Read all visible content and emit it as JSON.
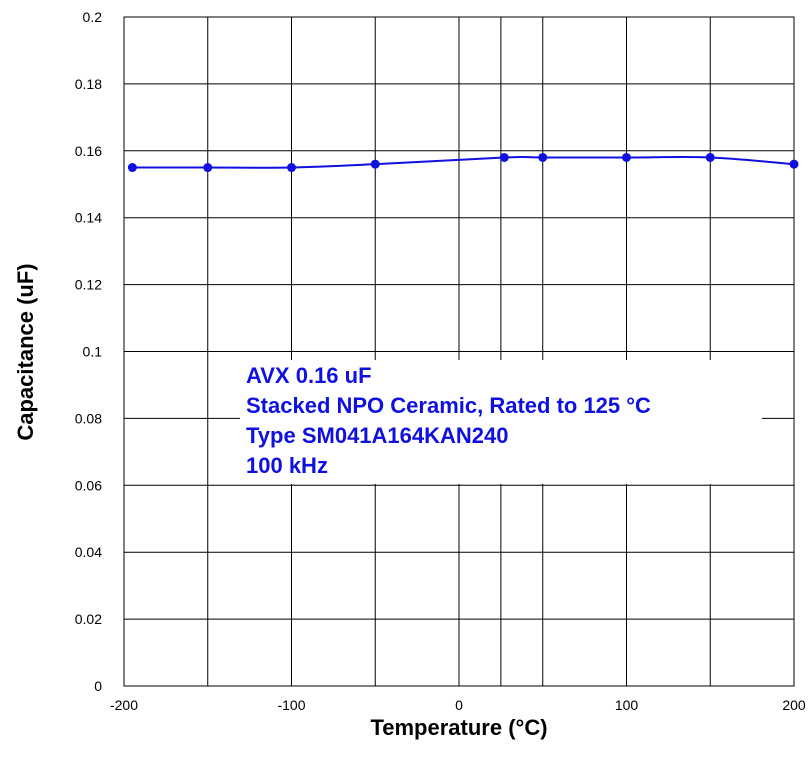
{
  "chart_data": {
    "type": "line",
    "title": "",
    "xlabel": "Temperature  (°C)",
    "ylabel": "Capacitance  (uF)",
    "xlim": [
      -200,
      200
    ],
    "ylim": [
      0,
      0.2
    ],
    "xticks": [
      -200,
      -100,
      0,
      100,
      200
    ],
    "xtick_labels": [
      "-200",
      "-100",
      "0",
      "100",
      "200"
    ],
    "xgrid": [
      -200,
      -150,
      -100,
      -50,
      0,
      25,
      50,
      100,
      150,
      200
    ],
    "yticks": [
      0,
      0.02,
      0.04,
      0.06,
      0.08,
      0.1,
      0.12,
      0.14,
      0.16,
      0.18,
      0.2
    ],
    "ytick_labels": [
      "0",
      "0.02",
      "0.04",
      "0.06",
      "0.08",
      "0.1",
      "0.12",
      "0.14",
      "0.16",
      "0.18",
      "0.2"
    ],
    "grid": true,
    "series": [
      {
        "color": "#1010e0",
        "x": [
          -195,
          -150,
          -100,
          -50,
          27,
          50,
          100,
          150,
          200
        ],
        "y": [
          0.155,
          0.155,
          0.155,
          0.156,
          0.158,
          0.158,
          0.158,
          0.158,
          0.156
        ]
      }
    ],
    "annotations": [
      "AVX  0.16 uF",
      "Stacked NPO Ceramic, Rated to 125 °C",
      "Type SM041A164KAN240",
      "100 kHz"
    ]
  }
}
